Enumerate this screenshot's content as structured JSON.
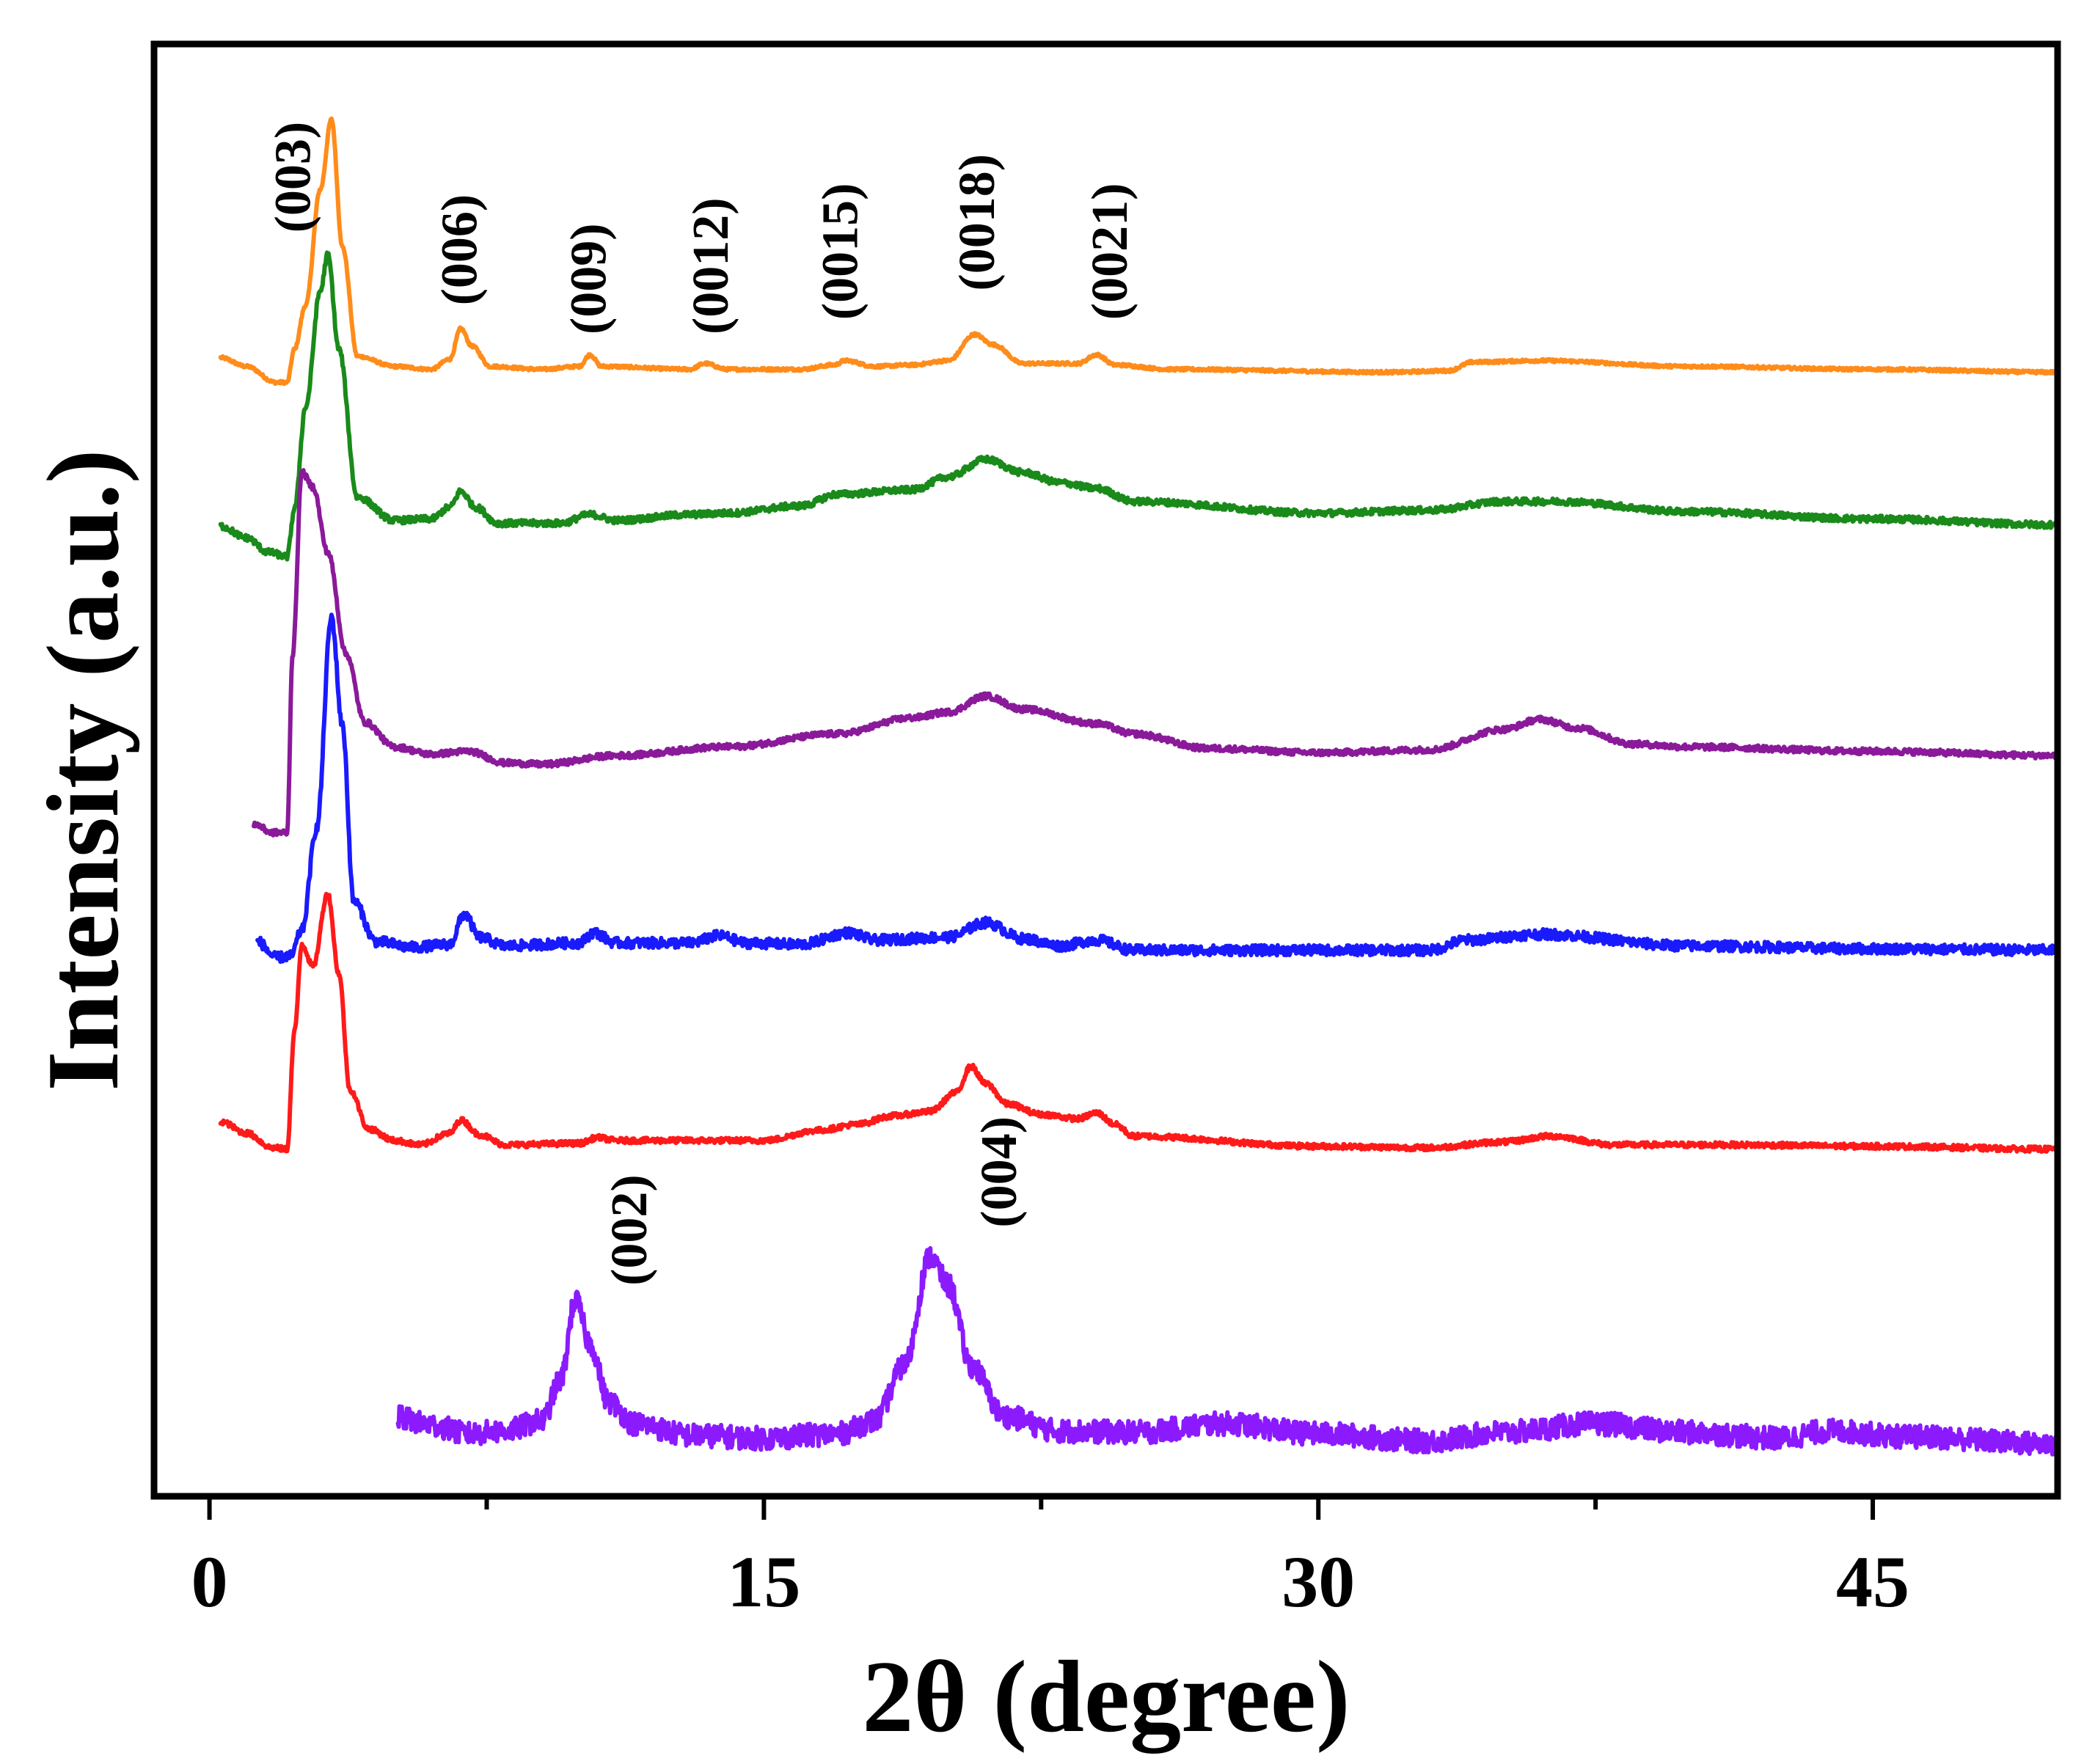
{
  "chart_data": {
    "type": "line",
    "title": "",
    "xlabel": "2θ (degree)",
    "ylabel": "Intensity (a.u.)",
    "xlim": [
      -1.5,
      50
    ],
    "ylim": [
      0,
      100
    ],
    "x_ticks": [
      0,
      15,
      30,
      45
    ],
    "x_tick_labels": [
      "0",
      "15",
      "30",
      "45"
    ],
    "x_minor_ticks": [
      7.5,
      22.5,
      37.5
    ],
    "legend": "none",
    "grid": false,
    "series": [
      {
        "name": "orange",
        "color": "#ff8c1a",
        "noise": 0.1,
        "points": [
          [
            0.3,
            78.4
          ],
          [
            1.0,
            77.8
          ],
          [
            1.8,
            76.7
          ],
          [
            2.1,
            76.7
          ],
          [
            2.3,
            79
          ],
          [
            2.6,
            82
          ],
          [
            3.0,
            90
          ],
          [
            3.3,
            94.8
          ],
          [
            3.6,
            86
          ],
          [
            4.0,
            78.5
          ],
          [
            5.0,
            77.8
          ],
          [
            6.0,
            77.6
          ],
          [
            6.5,
            78.3
          ],
          [
            6.8,
            80.4
          ],
          [
            7.1,
            79.2
          ],
          [
            7.6,
            77.8
          ],
          [
            9.0,
            77.6
          ],
          [
            10.0,
            77.8
          ],
          [
            10.3,
            78.6
          ],
          [
            10.6,
            77.8
          ],
          [
            13.0,
            77.6
          ],
          [
            13.4,
            78.0
          ],
          [
            14.0,
            77.6
          ],
          [
            16.0,
            77.6
          ],
          [
            16.9,
            77.9
          ],
          [
            17.2,
            78.2
          ],
          [
            18.0,
            77.8
          ],
          [
            19.0,
            77.9
          ],
          [
            20.0,
            78.2
          ],
          [
            20.7,
            80.0
          ],
          [
            21.2,
            79.3
          ],
          [
            22.0,
            78.0
          ],
          [
            23.5,
            78.0
          ],
          [
            24.0,
            78.6
          ],
          [
            24.5,
            77.9
          ],
          [
            26.0,
            77.6
          ],
          [
            32.0,
            77.4
          ],
          [
            33.5,
            77.5
          ],
          [
            34.2,
            78.1
          ],
          [
            36.0,
            78.2
          ],
          [
            40.0,
            77.8
          ],
          [
            45.0,
            77.6
          ],
          [
            50.0,
            77.4
          ]
        ]
      },
      {
        "name": "green",
        "color": "#1a8a1a",
        "noise": 0.22,
        "points": [
          [
            0.3,
            66.8
          ],
          [
            1.0,
            66
          ],
          [
            1.6,
            65
          ],
          [
            2.1,
            64.7
          ],
          [
            2.3,
            68
          ],
          [
            2.6,
            75
          ],
          [
            3.0,
            83
          ],
          [
            3.2,
            85.5
          ],
          [
            3.5,
            79
          ],
          [
            4.0,
            68.8
          ],
          [
            5.0,
            67.2
          ],
          [
            6.0,
            67.3
          ],
          [
            6.5,
            68.1
          ],
          [
            6.8,
            69.2
          ],
          [
            7.2,
            68.1
          ],
          [
            7.8,
            67.0
          ],
          [
            9.5,
            67.0
          ],
          [
            10.3,
            67.6
          ],
          [
            11.0,
            67.2
          ],
          [
            13.0,
            67.6
          ],
          [
            14.0,
            67.7
          ],
          [
            16.0,
            68.2
          ],
          [
            17.0,
            69.0
          ],
          [
            19.0,
            69.3
          ],
          [
            20.0,
            70.2
          ],
          [
            21.0,
            71.4
          ],
          [
            22.0,
            70.5
          ],
          [
            23.0,
            69.8
          ],
          [
            24.0,
            69.4
          ],
          [
            25.0,
            68.5
          ],
          [
            30.0,
            67.7
          ],
          [
            33.0,
            67.9
          ],
          [
            35.0,
            68.5
          ],
          [
            36.5,
            68.5
          ],
          [
            40.0,
            67.8
          ],
          [
            45.0,
            67.3
          ],
          [
            50.0,
            66.9
          ]
        ]
      },
      {
        "name": "purple",
        "color": "#8a1a9a",
        "noise": 0.2,
        "points": [
          [
            1.2,
            46.3
          ],
          [
            1.7,
            45.7
          ],
          [
            2.1,
            45.7
          ],
          [
            2.25,
            58
          ],
          [
            2.5,
            70.5
          ],
          [
            2.8,
            69.5
          ],
          [
            3.2,
            65
          ],
          [
            3.7,
            58
          ],
          [
            4.2,
            53.3
          ],
          [
            5.0,
            51.6
          ],
          [
            6.0,
            51.1
          ],
          [
            7.0,
            51.3
          ],
          [
            8.0,
            50.5
          ],
          [
            9.0,
            50.4
          ],
          [
            11.0,
            51.0
          ],
          [
            14.0,
            51.6
          ],
          [
            17.0,
            52.5
          ],
          [
            19.0,
            53.6
          ],
          [
            20.0,
            54.0
          ],
          [
            21.0,
            55.1
          ],
          [
            22.0,
            54.2
          ],
          [
            24.0,
            53.2
          ],
          [
            25.0,
            52.5
          ],
          [
            27.0,
            51.5
          ],
          [
            30.0,
            51.2
          ],
          [
            33.0,
            51.4
          ],
          [
            35.0,
            52.8
          ],
          [
            36.0,
            53.5
          ],
          [
            37.0,
            52.9
          ],
          [
            38.5,
            51.8
          ],
          [
            40.0,
            51.6
          ],
          [
            45.0,
            51.3
          ],
          [
            50.0,
            51.0
          ]
        ]
      },
      {
        "name": "blue",
        "color": "#1a1aff",
        "noise": 0.35,
        "points": [
          [
            1.3,
            38.2
          ],
          [
            1.8,
            37.1
          ],
          [
            2.2,
            37.2
          ],
          [
            2.5,
            39
          ],
          [
            2.9,
            46
          ],
          [
            3.3,
            60.5
          ],
          [
            3.6,
            53
          ],
          [
            3.9,
            41
          ],
          [
            4.5,
            38.2
          ],
          [
            5.5,
            37.8
          ],
          [
            6.5,
            38.0
          ],
          [
            6.9,
            40.1
          ],
          [
            7.3,
            38.5
          ],
          [
            8.0,
            37.9
          ],
          [
            10.0,
            38.1
          ],
          [
            10.4,
            38.8
          ],
          [
            11.0,
            38.1
          ],
          [
            13.0,
            38.1
          ],
          [
            13.8,
            38.6
          ],
          [
            14.5,
            38.1
          ],
          [
            16.0,
            38.0
          ],
          [
            17.3,
            38.8
          ],
          [
            18.0,
            38.3
          ],
          [
            20.0,
            38.5
          ],
          [
            21.0,
            39.5
          ],
          [
            22.0,
            38.4
          ],
          [
            23.0,
            37.9
          ],
          [
            24.0,
            38.3
          ],
          [
            25.0,
            37.6
          ],
          [
            30.0,
            37.6
          ],
          [
            33.0,
            37.6
          ],
          [
            34.0,
            38.3
          ],
          [
            36.0,
            38.7
          ],
          [
            40.0,
            37.9
          ],
          [
            45.0,
            37.7
          ],
          [
            50.0,
            37.6
          ]
        ]
      },
      {
        "name": "red",
        "color": "#ff1a1a",
        "noise": 0.18,
        "points": [
          [
            0.3,
            25.8
          ],
          [
            1.0,
            25.0
          ],
          [
            1.7,
            24
          ],
          [
            2.1,
            23.9
          ],
          [
            2.3,
            32
          ],
          [
            2.5,
            38
          ],
          [
            2.8,
            36.5
          ],
          [
            3.2,
            41.5
          ],
          [
            3.5,
            36
          ],
          [
            3.8,
            28
          ],
          [
            4.3,
            25.3
          ],
          [
            5.0,
            24.5
          ],
          [
            5.7,
            24.2
          ],
          [
            6.5,
            25.0
          ],
          [
            6.8,
            25.9
          ],
          [
            7.3,
            24.9
          ],
          [
            8.0,
            24.2
          ],
          [
            10.0,
            24.3
          ],
          [
            10.5,
            24.7
          ],
          [
            11.0,
            24.5
          ],
          [
            15.0,
            24.5
          ],
          [
            16.5,
            25.2
          ],
          [
            17.5,
            25.6
          ],
          [
            18.5,
            26.2
          ],
          [
            19.5,
            26.5
          ],
          [
            20.2,
            27.8
          ],
          [
            20.6,
            29.6
          ],
          [
            21.0,
            28.4
          ],
          [
            21.6,
            27.0
          ],
          [
            22.5,
            26.3
          ],
          [
            23.5,
            26.0
          ],
          [
            24.0,
            26.4
          ],
          [
            24.5,
            25.6
          ],
          [
            25.0,
            24.8
          ],
          [
            30.0,
            24.1
          ],
          [
            33.0,
            24.0
          ],
          [
            35.0,
            24.4
          ],
          [
            36.3,
            24.8
          ],
          [
            38.0,
            24.2
          ],
          [
            41.0,
            24.2
          ],
          [
            45.0,
            24.1
          ],
          [
            50.0,
            23.9
          ]
        ]
      },
      {
        "name": "violet",
        "color": "#8c1aff",
        "noise": 0.8,
        "points": [
          [
            5.1,
            5.4
          ],
          [
            6.0,
            4.9
          ],
          [
            7.0,
            4.3
          ],
          [
            8.0,
            4.5
          ],
          [
            9.0,
            5.2
          ],
          [
            9.5,
            8
          ],
          [
            9.9,
            13.5
          ],
          [
            10.3,
            10.5
          ],
          [
            10.8,
            6.5
          ],
          [
            11.5,
            5.0
          ],
          [
            13.0,
            4.2
          ],
          [
            15.0,
            4.0
          ],
          [
            17.0,
            4.3
          ],
          [
            18.0,
            5.2
          ],
          [
            18.8,
            9
          ],
          [
            19.5,
            16.5
          ],
          [
            20.0,
            14.5
          ],
          [
            20.6,
            9
          ],
          [
            21.5,
            5.5
          ],
          [
            23.0,
            4.5
          ],
          [
            25.0,
            4.4
          ],
          [
            27.5,
            5.0
          ],
          [
            30.0,
            4.3
          ],
          [
            33.0,
            3.8
          ],
          [
            35.0,
            4.4
          ],
          [
            37.5,
            5.0
          ],
          [
            40.0,
            4.4
          ],
          [
            42.5,
            4.0
          ],
          [
            43.8,
            4.5
          ],
          [
            46.0,
            4.1
          ],
          [
            50.0,
            3.6
          ]
        ]
      }
    ],
    "peak_labels": [
      {
        "text": "(003)",
        "x": 2.4,
        "y": 87
      },
      {
        "text": "(006)",
        "x": 6.9,
        "y": 82
      },
      {
        "text": "(009)",
        "x": 10.4,
        "y": 80
      },
      {
        "text": "(0012)",
        "x": 13.7,
        "y": 80
      },
      {
        "text": "(0015)",
        "x": 17.2,
        "y": 81
      },
      {
        "text": "(0018)",
        "x": 20.9,
        "y": 83
      },
      {
        "text": "(0021)",
        "x": 24.5,
        "y": 81
      },
      {
        "text": "(002)",
        "x": 11.5,
        "y": 14.5
      },
      {
        "text": "(004)",
        "x": 21.5,
        "y": 18.5
      }
    ]
  }
}
